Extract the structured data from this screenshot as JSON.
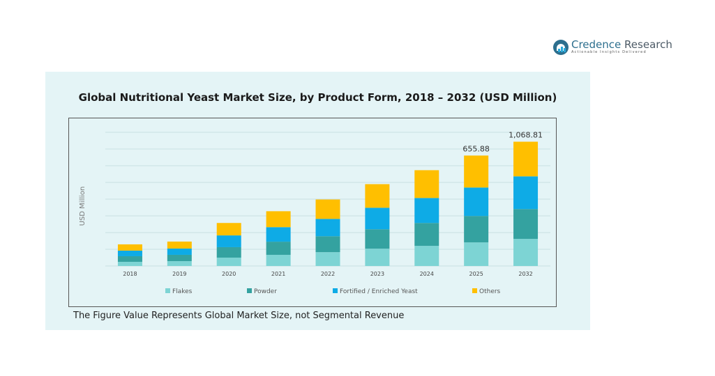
{
  "brand": {
    "name_part1": "Credence",
    "name_part2": " Research",
    "tagline": "Actionable Insights Delivered"
  },
  "note": "The Figure Value Represents Global Market Size, not Segmental Revenue",
  "colors": {
    "Flakes": "#7dd4d4",
    "Powder": "#34a2a0",
    "Fortified / Enriched Yeast": "#0eabe6",
    "Others": "#ffbf00"
  },
  "chart_data": {
    "type": "bar",
    "stacked": true,
    "title": "Global Nutritional Yeast Market Size, by Product Form, 2018 – 2032 (USD Million)",
    "xlabel": "",
    "ylabel": "USD Million",
    "categories": [
      "2018",
      "2019",
      "2020",
      "2021",
      "2022",
      "2023",
      "2024",
      "2025",
      "2032"
    ],
    "series": [
      {
        "name": "Flakes",
        "values": [
          36,
          42,
          72,
          96,
          119,
          149,
          173,
          203,
          233
        ]
      },
      {
        "name": "Powder",
        "values": [
          48,
          54,
          90,
          113,
          137,
          167,
          197,
          227,
          257
        ]
      },
      {
        "name": "Fortified / Enriched Yeast",
        "values": [
          48,
          54,
          101,
          125,
          149,
          185,
          215,
          245,
          281
        ]
      },
      {
        "name": "Others",
        "values": [
          54,
          60,
          107,
          137,
          167,
          203,
          239,
          275,
          298
        ]
      }
    ],
    "data_labels": {
      "2025": "655.88",
      "2032": "1,068.81"
    },
    "ylim": [
      0,
      1150
    ],
    "grid": true,
    "legend": "bottom"
  }
}
